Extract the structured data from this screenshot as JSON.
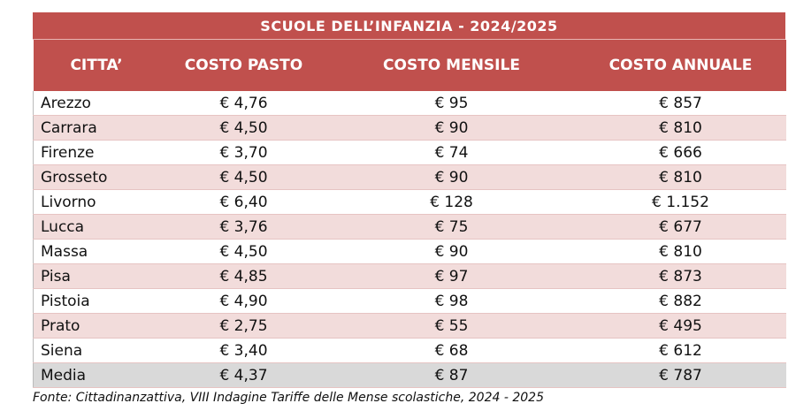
{
  "table": {
    "title": "SCUOLE DELL’INFANZIA - 2024/2025",
    "header": [
      "CITTA’",
      "COSTO PASTO",
      "COSTO MENSILE",
      "COSTO ANNUALE"
    ],
    "rows": [
      [
        "Arezzo",
        "€ 4,76",
        "€ 95",
        "€ 857"
      ],
      [
        "Carrara",
        "€ 4,50",
        "€ 90",
        "€ 810"
      ],
      [
        "Firenze",
        "€ 3,70",
        "€ 74",
        "€ 666"
      ],
      [
        "Grosseto",
        "€ 4,50",
        "€ 90",
        "€ 810"
      ],
      [
        "Livorno",
        "€ 6,40",
        "€ 128",
        "€ 1.152"
      ],
      [
        "Lucca",
        "€ 3,76",
        "€ 75",
        "€ 677"
      ],
      [
        "Massa",
        "€ 4,50",
        "€ 90",
        "€ 810"
      ],
      [
        "Pisa",
        "€ 4,85",
        "€ 97",
        "€ 873"
      ],
      [
        "Pistoia",
        "€ 4,90",
        "€ 98",
        "€ 882"
      ],
      [
        "Prato",
        "€ 2,75",
        "€ 55",
        "€ 495"
      ],
      [
        "Siena",
        "€ 3,40",
        "€ 68",
        "€ 612"
      ],
      [
        "Media",
        "€ 4,37",
        "€ 87",
        "€ 787"
      ]
    ]
  },
  "footnote": "Fonte: Cittadinanzattiva, VIII Indagine Tariffe delle Mense scolastiche, 2024 - 2025"
}
